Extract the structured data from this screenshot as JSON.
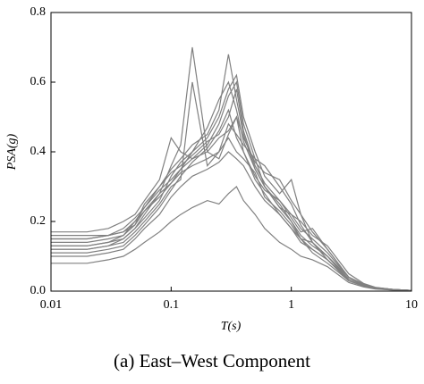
{
  "chart_data": {
    "type": "line",
    "caption": "(a) East–West Component",
    "xlabel": "T(s)",
    "ylabel": "PSA(g)",
    "log_x": true,
    "color": "#808080",
    "xlim": [
      0.01,
      10
    ],
    "xticks": [
      0.01,
      0.1,
      1,
      10
    ],
    "ylim": [
      0,
      0.8
    ],
    "yticks": [
      {
        "value": 0,
        "label": "0.0"
      },
      0.2,
      0.4,
      0.6,
      0.8
    ],
    "x": [
      0.01,
      0.02,
      0.03,
      0.04,
      0.05,
      0.06,
      0.08,
      0.1,
      0.12,
      0.15,
      0.2,
      0.25,
      0.3,
      0.35,
      0.4,
      0.5,
      0.6,
      0.8,
      1,
      1.2,
      1.5,
      2,
      3,
      4,
      5,
      7,
      10
    ],
    "series": [
      {
        "values": [
          0.12,
          0.12,
          0.13,
          0.15,
          0.18,
          0.22,
          0.28,
          0.36,
          0.42,
          0.7,
          0.4,
          0.38,
          0.45,
          0.5,
          0.4,
          0.32,
          0.28,
          0.22,
          0.18,
          0.14,
          0.12,
          0.09,
          0.03,
          0.015,
          0.008,
          0.004,
          0.002
        ]
      },
      {
        "values": [
          0.15,
          0.15,
          0.16,
          0.17,
          0.2,
          0.24,
          0.3,
          0.35,
          0.38,
          0.42,
          0.45,
          0.52,
          0.68,
          0.55,
          0.45,
          0.35,
          0.3,
          0.25,
          0.2,
          0.16,
          0.13,
          0.1,
          0.04,
          0.02,
          0.01,
          0.005,
          0.002
        ]
      },
      {
        "values": [
          0.17,
          0.17,
          0.18,
          0.2,
          0.22,
          0.26,
          0.32,
          0.44,
          0.4,
          0.38,
          0.42,
          0.48,
          0.56,
          0.6,
          0.48,
          0.38,
          0.3,
          0.24,
          0.22,
          0.18,
          0.15,
          0.11,
          0.04,
          0.02,
          0.01,
          0.005,
          0.002
        ]
      },
      {
        "values": [
          0.08,
          0.08,
          0.09,
          0.1,
          0.12,
          0.14,
          0.17,
          0.2,
          0.22,
          0.24,
          0.26,
          0.25,
          0.28,
          0.3,
          0.26,
          0.22,
          0.18,
          0.14,
          0.12,
          0.1,
          0.09,
          0.07,
          0.025,
          0.012,
          0.006,
          0.003,
          0.001
        ]
      },
      {
        "values": [
          0.13,
          0.13,
          0.14,
          0.15,
          0.18,
          0.21,
          0.26,
          0.33,
          0.37,
          0.4,
          0.44,
          0.5,
          0.58,
          0.62,
          0.5,
          0.4,
          0.33,
          0.28,
          0.32,
          0.22,
          0.17,
          0.12,
          0.04,
          0.02,
          0.01,
          0.005,
          0.002
        ]
      },
      {
        "values": [
          0.16,
          0.16,
          0.16,
          0.17,
          0.19,
          0.23,
          0.28,
          0.31,
          0.34,
          0.36,
          0.38,
          0.4,
          0.48,
          0.45,
          0.42,
          0.38,
          0.36,
          0.3,
          0.25,
          0.19,
          0.14,
          0.1,
          0.035,
          0.018,
          0.009,
          0.004,
          0.002
        ]
      },
      {
        "values": [
          0.11,
          0.11,
          0.12,
          0.13,
          0.16,
          0.19,
          0.24,
          0.29,
          0.33,
          0.37,
          0.41,
          0.46,
          0.52,
          0.44,
          0.4,
          0.33,
          0.29,
          0.26,
          0.22,
          0.2,
          0.16,
          0.13,
          0.05,
          0.022,
          0.011,
          0.005,
          0.002
        ]
      },
      {
        "values": [
          0.14,
          0.14,
          0.15,
          0.16,
          0.19,
          0.25,
          0.3,
          0.34,
          0.36,
          0.39,
          0.43,
          0.45,
          0.5,
          0.58,
          0.46,
          0.36,
          0.31,
          0.26,
          0.21,
          0.17,
          0.18,
          0.12,
          0.04,
          0.02,
          0.01,
          0.005,
          0.002
        ]
      },
      {
        "values": [
          0.12,
          0.12,
          0.13,
          0.14,
          0.17,
          0.2,
          0.25,
          0.3,
          0.32,
          0.6,
          0.36,
          0.4,
          0.44,
          0.4,
          0.38,
          0.34,
          0.27,
          0.23,
          0.19,
          0.15,
          0.11,
          0.08,
          0.03,
          0.015,
          0.008,
          0.004,
          0.002
        ]
      },
      {
        "values": [
          0.15,
          0.15,
          0.16,
          0.18,
          0.21,
          0.24,
          0.29,
          0.32,
          0.35,
          0.38,
          0.4,
          0.44,
          0.46,
          0.5,
          0.44,
          0.37,
          0.34,
          0.32,
          0.26,
          0.22,
          0.14,
          0.1,
          0.03,
          0.015,
          0.008,
          0.004,
          0.002
        ]
      },
      {
        "values": [
          0.13,
          0.13,
          0.14,
          0.16,
          0.2,
          0.23,
          0.27,
          0.31,
          0.35,
          0.4,
          0.47,
          0.55,
          0.6,
          0.52,
          0.43,
          0.35,
          0.3,
          0.24,
          0.2,
          0.15,
          0.14,
          0.09,
          0.035,
          0.017,
          0.009,
          0.004,
          0.002
        ]
      },
      {
        "values": [
          0.1,
          0.1,
          0.11,
          0.12,
          0.15,
          0.18,
          0.22,
          0.27,
          0.3,
          0.33,
          0.35,
          0.37,
          0.4,
          0.38,
          0.36,
          0.3,
          0.26,
          0.22,
          0.18,
          0.15,
          0.12,
          0.09,
          0.03,
          0.014,
          0.007,
          0.003,
          0.001
        ]
      }
    ]
  }
}
